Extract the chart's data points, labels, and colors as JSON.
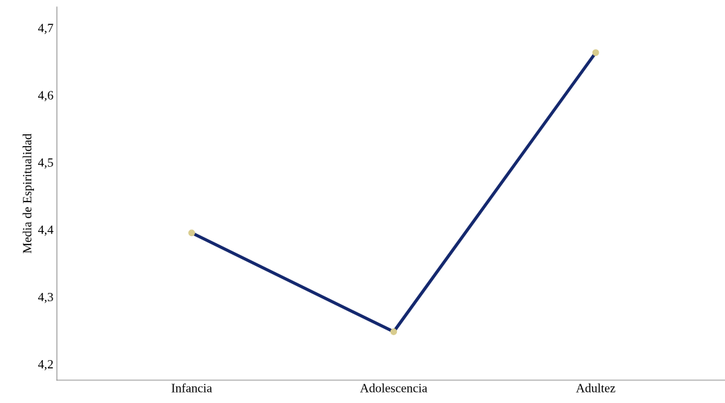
{
  "chart_data": {
    "type": "line",
    "ylabel": "Media de Espiritualidad",
    "categories": [
      "Infancia",
      "Adolescencia",
      "Adultez"
    ],
    "series": [
      {
        "color": "#14286e",
        "values": [
          4.395,
          4.248,
          4.663
        ]
      }
    ],
    "ylim": [
      4.176,
      4.731
    ],
    "yticks": [
      {
        "value": 4.2,
        "label": "4,2"
      },
      {
        "value": 4.3,
        "label": "4,3"
      },
      {
        "value": 4.4,
        "label": "4,4"
      },
      {
        "value": 4.5,
        "label": "4,5"
      },
      {
        "value": 4.6,
        "label": "4,6"
      },
      {
        "value": 4.7,
        "label": "4,7"
      }
    ],
    "grid": false,
    "marker": "circle",
    "line_style": "solid"
  }
}
